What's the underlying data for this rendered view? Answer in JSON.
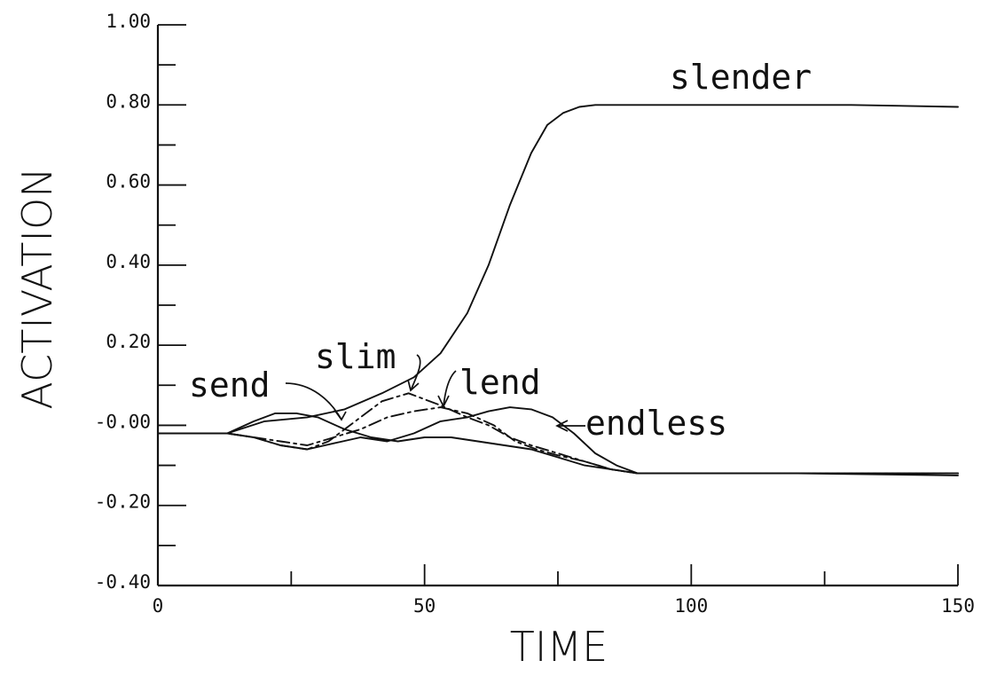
{
  "chart_data": {
    "type": "line",
    "xlabel": "TIME",
    "ylabel": "ACTIVATION",
    "xlim": [
      0,
      150
    ],
    "ylim": [
      -0.4,
      1.0
    ],
    "x_ticks": [
      "0",
      "50",
      "100",
      "150"
    ],
    "y_ticks": [
      "-0.40",
      "-0.20",
      "-0.00",
      "0.20",
      "0.40",
      "0.60",
      "0.80",
      "1.00"
    ],
    "grid": false,
    "series": [
      {
        "name": "slender",
        "dash": "solid",
        "x": [
          0,
          13,
          20,
          28,
          35,
          42,
          48,
          53,
          58,
          62,
          66,
          70,
          73,
          76,
          79,
          82,
          86,
          95,
          110,
          130,
          150
        ],
        "y": [
          -0.02,
          -0.02,
          0.01,
          0.02,
          0.04,
          0.08,
          0.12,
          0.18,
          0.28,
          0.4,
          0.55,
          0.68,
          0.75,
          0.78,
          0.795,
          0.8,
          0.8,
          0.8,
          0.8,
          0.8,
          0.795
        ]
      },
      {
        "name": "send",
        "dash": "solid",
        "x": [
          0,
          13,
          18,
          22,
          26,
          30,
          35,
          40,
          45,
          50,
          55,
          60,
          65,
          70,
          75,
          80,
          85,
          90,
          100,
          120,
          150
        ],
        "y": [
          -0.02,
          -0.02,
          0.01,
          0.03,
          0.03,
          0.02,
          -0.01,
          -0.03,
          -0.04,
          -0.03,
          -0.03,
          -0.04,
          -0.05,
          -0.06,
          -0.08,
          -0.1,
          -0.11,
          -0.12,
          -0.12,
          -0.12,
          -0.12
        ]
      },
      {
        "name": "slim",
        "dash": "dashdot",
        "x": [
          0,
          13,
          18,
          23,
          28,
          32,
          37,
          42,
          47,
          53,
          58,
          62,
          66,
          70,
          75,
          80,
          85,
          90,
          100,
          120,
          150
        ],
        "y": [
          -0.02,
          -0.02,
          -0.03,
          -0.05,
          -0.06,
          -0.04,
          0.01,
          0.06,
          0.08,
          0.05,
          0.02,
          0.0,
          -0.03,
          -0.05,
          -0.07,
          -0.09,
          -0.11,
          -0.12,
          -0.12,
          -0.12,
          -0.12
        ]
      },
      {
        "name": "lend",
        "dash": "dashdot",
        "x": [
          0,
          13,
          18,
          23,
          28,
          33,
          38,
          43,
          48,
          53,
          58,
          63,
          67,
          71,
          75,
          80,
          85,
          90,
          100,
          120,
          150
        ],
        "y": [
          -0.02,
          -0.02,
          -0.03,
          -0.04,
          -0.05,
          -0.03,
          -0.01,
          0.02,
          0.035,
          0.045,
          0.03,
          0.0,
          -0.04,
          -0.06,
          -0.075,
          -0.09,
          -0.11,
          -0.12,
          -0.12,
          -0.12,
          -0.12
        ]
      },
      {
        "name": "endless",
        "dash": "solid",
        "x": [
          0,
          13,
          18,
          23,
          28,
          33,
          38,
          43,
          48,
          53,
          58,
          62,
          66,
          70,
          74,
          78,
          82,
          86,
          90,
          100,
          120,
          150
        ],
        "y": [
          -0.02,
          -0.02,
          -0.03,
          -0.05,
          -0.06,
          -0.045,
          -0.03,
          -0.04,
          -0.02,
          0.01,
          0.02,
          0.035,
          0.045,
          0.04,
          0.02,
          -0.02,
          -0.07,
          -0.1,
          -0.12,
          -0.12,
          -0.12,
          -0.125
        ]
      }
    ],
    "annotations": [
      {
        "text": "slender"
      },
      {
        "text": "slim"
      },
      {
        "text": "send"
      },
      {
        "text": "lend"
      },
      {
        "text": "endless"
      }
    ]
  }
}
